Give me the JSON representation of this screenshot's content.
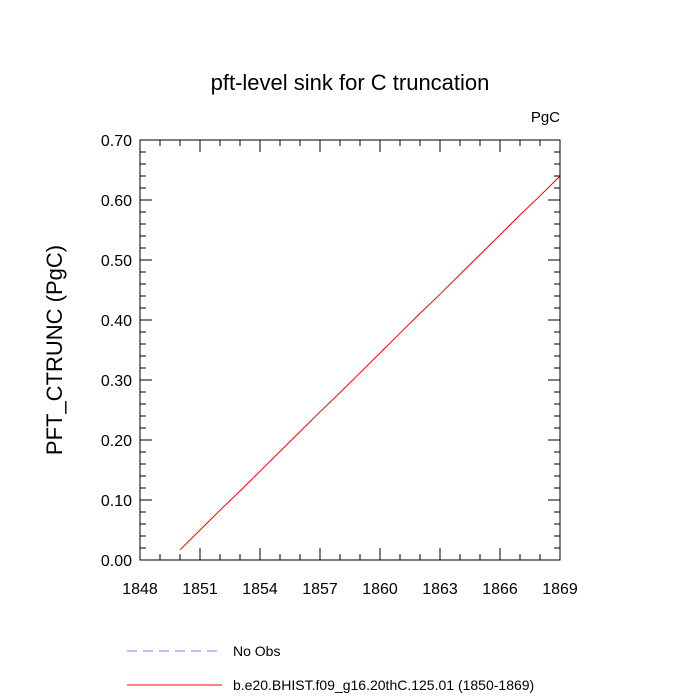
{
  "chart_data": {
    "type": "line",
    "title": "pft-level sink for C truncation",
    "units_label": "PgC",
    "ylabel": "PFT_CTRUNC  (PgC)",
    "xlabel": "",
    "xlim": [
      1848,
      1869
    ],
    "ylim": [
      0.0,
      0.7
    ],
    "x_ticks": [
      1848,
      1851,
      1854,
      1857,
      1860,
      1863,
      1866,
      1869
    ],
    "x_tick_labels": [
      "1848",
      "1851",
      "1854",
      "1857",
      "1860",
      "1863",
      "1866",
      "1869"
    ],
    "y_ticks": [
      0.0,
      0.1,
      0.2,
      0.3,
      0.4,
      0.5,
      0.6,
      0.7
    ],
    "y_tick_labels": [
      "0.00",
      "0.10",
      "0.20",
      "0.30",
      "0.40",
      "0.50",
      "0.60",
      "0.70"
    ],
    "grid": false,
    "legend_position": "bottom",
    "series": [
      {
        "name": "b.e20.BHIST.f09_g16.20thC.125.01 (1850-1869)",
        "color": "#ff0000",
        "dash": "solid",
        "x": [
          1850,
          1851,
          1852,
          1853,
          1854,
          1855,
          1856,
          1857,
          1858,
          1859,
          1860,
          1861,
          1862,
          1863,
          1864,
          1865,
          1866,
          1867,
          1868,
          1869
        ],
        "y": [
          0.017,
          0.05,
          0.083,
          0.115,
          0.148,
          0.181,
          0.214,
          0.247,
          0.279,
          0.312,
          0.345,
          0.378,
          0.411,
          0.443,
          0.476,
          0.509,
          0.542,
          0.575,
          0.607,
          0.64
        ]
      }
    ],
    "legend": [
      {
        "label": "No Obs",
        "color": "#8080ff",
        "dash": "dashed"
      },
      {
        "label": "b.e20.BHIST.f09_g16.20thC.125.01 (1850-1869)",
        "color": "#ff0000",
        "dash": "solid"
      }
    ]
  }
}
